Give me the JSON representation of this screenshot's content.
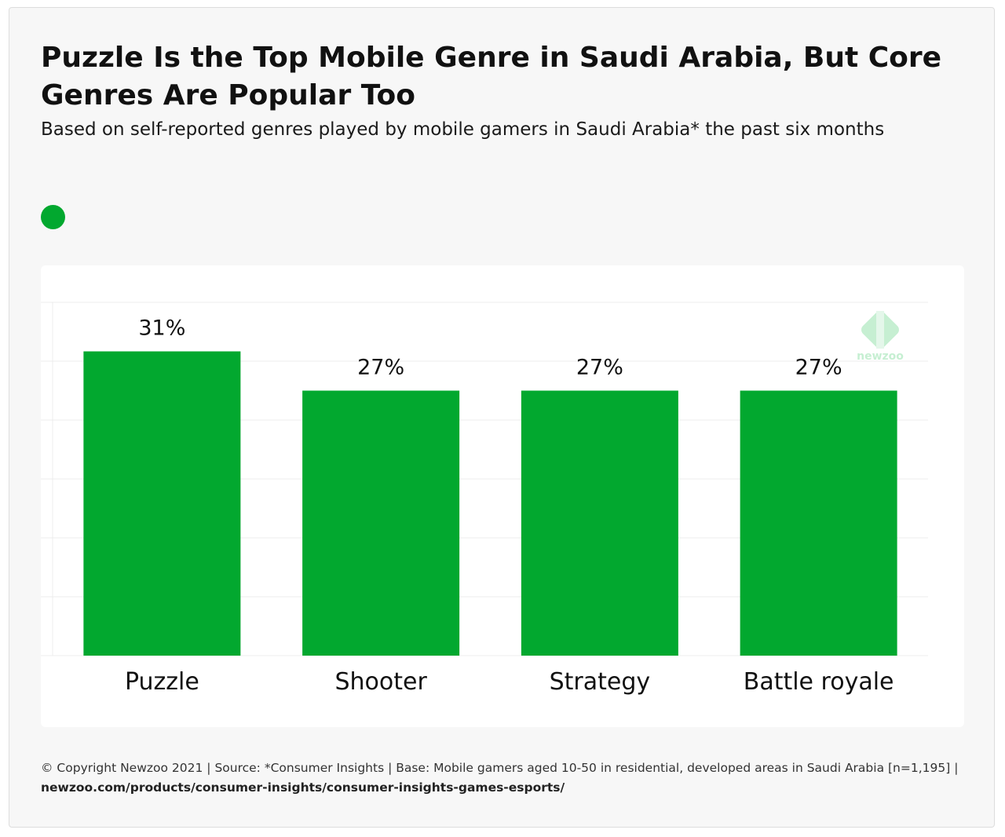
{
  "title": "Puzzle Is the Top Mobile Genre in Saudi Arabia, But Core Genres Are Popular Too",
  "subtitle": "Based on self-reported genres played by mobile gamers in Saudi Arabia* the past six months",
  "colors": {
    "bar": "#02a82f",
    "grid": "#ececec",
    "watermark": "#c6efd2"
  },
  "watermark": {
    "text": "newzoo"
  },
  "chart_data": {
    "type": "bar",
    "categories": [
      "Puzzle",
      "Shooter",
      "Strategy",
      "Battle royale"
    ],
    "values": [
      31,
      27,
      27,
      27
    ],
    "value_labels": [
      "31%",
      "27%",
      "27%",
      "27%"
    ],
    "unit": "%",
    "ylim": [
      0,
      36
    ],
    "grid": true,
    "legend": {
      "placement": "top-left",
      "entries": [
        ""
      ]
    }
  },
  "footer": {
    "text": "© Copyright Newzoo 2021 | Source: *Consumer Insights | Base: Mobile gamers aged 10-50 in residential, developed areas in Saudi Arabia [n=1,195] | ",
    "link": "newzoo.com/products/consumer-insights/consumer-insights-games-esports/"
  }
}
